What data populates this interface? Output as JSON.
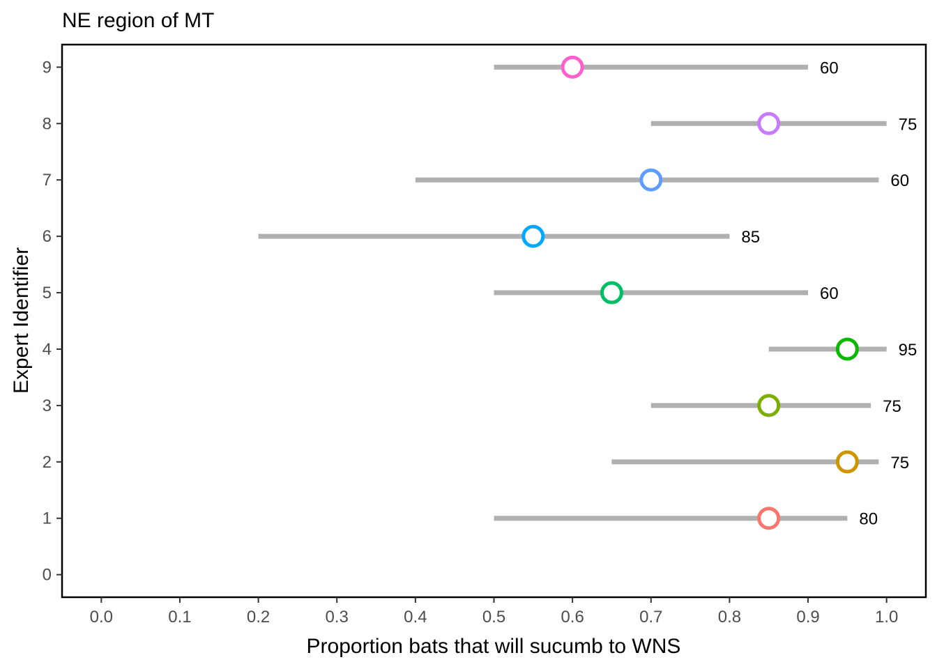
{
  "chart_data": {
    "type": "scatter",
    "title": "NE region of MT",
    "xlabel": "Proportion bats that will sucumb to WNS",
    "ylabel": "Expert Identifier",
    "xlim": [
      -0.05,
      1.05
    ],
    "ylim": [
      -0.4,
      9.4
    ],
    "x_ticks": [
      "0.0",
      "0.1",
      "0.2",
      "0.3",
      "0.4",
      "0.5",
      "0.6",
      "0.7",
      "0.8",
      "0.9",
      "1.0"
    ],
    "y_ticks": [
      "0",
      "1",
      "2",
      "3",
      "4",
      "5",
      "6",
      "7",
      "8",
      "9"
    ],
    "grid": false,
    "legend": "none",
    "range_color": "#b0b0b0",
    "points": [
      {
        "expert": 1,
        "estimate": 0.85,
        "low": 0.5,
        "high": 0.95,
        "label": "80",
        "color": "#F8766D"
      },
      {
        "expert": 2,
        "estimate": 0.95,
        "low": 0.65,
        "high": 0.99,
        "label": "75",
        "color": "#CD9600"
      },
      {
        "expert": 3,
        "estimate": 0.85,
        "low": 0.7,
        "high": 0.98,
        "label": "75",
        "color": "#7CAE00"
      },
      {
        "expert": 4,
        "estimate": 0.95,
        "low": 0.85,
        "high": 1.0,
        "label": "95",
        "color": "#0CB702"
      },
      {
        "expert": 5,
        "estimate": 0.65,
        "low": 0.5,
        "high": 0.9,
        "label": "60",
        "color": "#00BE67"
      },
      {
        "expert": 6,
        "estimate": 0.55,
        "low": 0.2,
        "high": 0.8,
        "label": "85",
        "color": "#00A9FF"
      },
      {
        "expert": 7,
        "estimate": 0.7,
        "low": 0.4,
        "high": 0.99,
        "label": "60",
        "color": "#619CFF"
      },
      {
        "expert": 8,
        "estimate": 0.85,
        "low": 0.7,
        "high": 1.0,
        "label": "75",
        "color": "#C77CFF"
      },
      {
        "expert": 9,
        "estimate": 0.6,
        "low": 0.5,
        "high": 0.9,
        "label": "60",
        "color": "#FF61CC"
      }
    ]
  }
}
